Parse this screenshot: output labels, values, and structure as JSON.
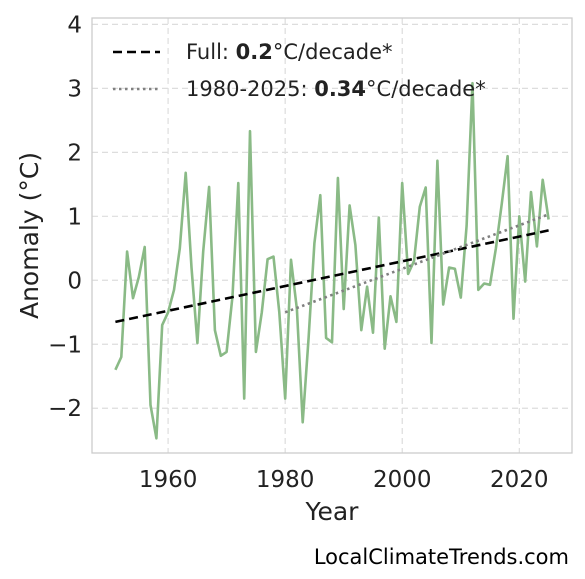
{
  "chart_data": {
    "type": "line",
    "xlabel": "Year",
    "ylabel": "Anomaly (°C)",
    "xlim": [
      1947,
      2029
    ],
    "ylim": [
      -2.7,
      4.1
    ],
    "x_ticks": [
      1960,
      1980,
      2000,
      2020
    ],
    "x_tick_labels": [
      "1960",
      "1980",
      "2000",
      "2020"
    ],
    "y_ticks": [
      -2,
      -1,
      0,
      1,
      2,
      3,
      4
    ],
    "y_tick_labels": [
      "−2",
      "−1",
      "0",
      "1",
      "2",
      "3",
      "4"
    ],
    "grid": true,
    "legend_position": "top-left",
    "series": [
      {
        "style": "solid",
        "color": "#8aba86",
        "x": [
          1951,
          1952,
          1953,
          1954,
          1955,
          1956,
          1957,
          1958,
          1959,
          1960,
          1961,
          1962,
          1963,
          1964,
          1965,
          1966,
          1967,
          1968,
          1969,
          1970,
          1971,
          1972,
          1973,
          1974,
          1975,
          1976,
          1977,
          1978,
          1979,
          1980,
          1981,
          1982,
          1983,
          1984,
          1985,
          1986,
          1987,
          1988,
          1989,
          1990,
          1991,
          1992,
          1993,
          1994,
          1995,
          1996,
          1997,
          1998,
          1999,
          2000,
          2001,
          2002,
          2003,
          2004,
          2005,
          2006,
          2007,
          2008,
          2009,
          2010,
          2011,
          2012,
          2013,
          2014,
          2015,
          2016,
          2017,
          2018,
          2019,
          2020,
          2021,
          2022,
          2023,
          2024,
          2025
        ],
        "y": [
          -1.4,
          -1.2,
          0.45,
          -0.28,
          0.05,
          0.52,
          -1.95,
          -2.47,
          -0.7,
          -0.5,
          -0.15,
          0.5,
          1.68,
          0.2,
          -0.98,
          0.45,
          1.46,
          -0.78,
          -1.18,
          -1.12,
          -0.25,
          1.52,
          -1.85,
          2.33,
          -1.12,
          -0.5,
          0.33,
          0.37,
          -0.5,
          -1.85,
          0.32,
          -0.45,
          -2.22,
          -0.9,
          0.58,
          1.33,
          -0.9,
          -0.97,
          1.6,
          -0.45,
          1.17,
          0.55,
          -0.78,
          -0.1,
          -0.82,
          0.98,
          -1.07,
          -0.25,
          -0.65,
          1.52,
          0.1,
          0.3,
          1.15,
          1.45,
          -0.98,
          1.87,
          -0.38,
          0.2,
          0.18,
          -0.27,
          0.85,
          3.08,
          -0.15,
          -0.05,
          -0.07,
          0.5,
          1.2,
          1.94,
          -0.6,
          1.0,
          -0.02,
          1.38,
          0.53,
          1.57,
          0.95
        ]
      },
      {
        "name_prefix": "Full: ",
        "name_value": "0.2",
        "name_suffix": "°C/decade*",
        "style": "dashed",
        "color": "#000000",
        "x": [
          1951,
          2025
        ],
        "y": [
          -0.65,
          0.78
        ]
      },
      {
        "name_prefix": "1980-2025: ",
        "name_value": "0.34",
        "name_suffix": "°C/decade*",
        "style": "dotted",
        "color": "#808080",
        "x": [
          1980,
          2025
        ],
        "y": [
          -0.5,
          1.03
        ]
      }
    ]
  },
  "credit": "LocalClimateTrends.com"
}
